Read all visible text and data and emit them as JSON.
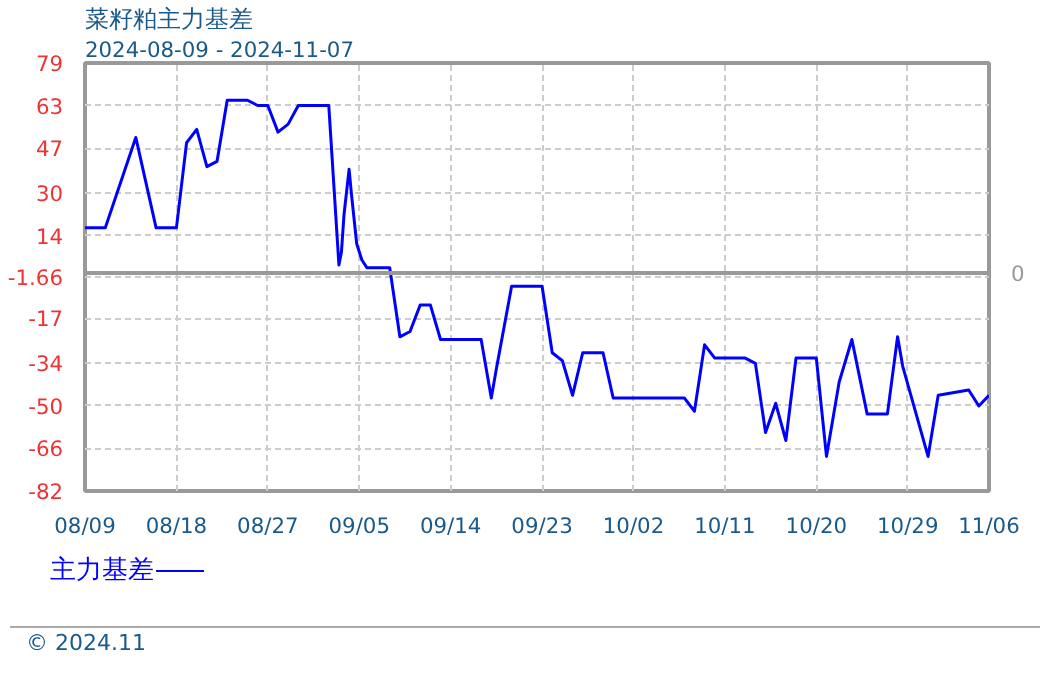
{
  "chart_data": {
    "type": "line",
    "title": "菜籽粕主力基差",
    "subtitle": "2024-08-09 - 2024-11-07",
    "x": [
      "2024-08-09",
      "2024-08-11",
      "2024-08-14",
      "2024-08-16",
      "2024-08-18",
      "2024-08-19",
      "2024-08-20",
      "2024-08-21",
      "2024-08-22",
      "2024-08-23",
      "2024-08-25",
      "2024-08-26",
      "2024-08-27",
      "2024-08-28",
      "2024-08-29",
      "2024-08-30",
      "2024-09-02",
      "2024-09-02T12:00",
      "2024-09-03",
      "2024-09-03T06:00",
      "2024-09-03T12:00",
      "2024-09-04",
      "2024-09-04T06:00",
      "2024-09-04T18:00",
      "2024-09-05T06:00",
      "2024-09-05T18:00",
      "2024-09-08",
      "2024-09-09",
      "2024-09-10",
      "2024-09-11",
      "2024-09-12",
      "2024-09-13",
      "2024-09-17",
      "2024-09-18",
      "2024-09-18T12:00",
      "2024-09-20",
      "2024-09-23",
      "2024-09-24",
      "2024-09-25",
      "2024-09-26",
      "2024-09-27",
      "2024-09-29",
      "2024-09-30",
      "2024-10-07",
      "2024-10-08",
      "2024-10-09",
      "2024-10-10",
      "2024-10-13",
      "2024-10-14",
      "2024-10-15",
      "2024-10-16",
      "2024-10-17",
      "2024-10-18",
      "2024-10-20",
      "2024-10-21",
      "2024-10-22T06:00",
      "2024-10-23T12:00",
      "2024-10-25",
      "2024-10-27",
      "2024-10-28",
      "2024-10-28T12:00",
      "2024-10-31",
      "2024-11-01",
      "2024-11-04",
      "2024-11-05",
      "2024-11-06"
    ],
    "series": [
      {
        "name": "主力基差",
        "color": "#0000ff",
        "values": [
          17,
          17,
          51,
          17,
          17,
          49,
          54,
          40,
          42,
          65,
          65,
          63,
          63,
          53,
          56,
          63,
          63,
          33,
          3,
          8,
          22,
          39,
          29,
          11,
          5,
          2,
          2,
          -24,
          -22,
          -12,
          -12,
          -25,
          -25,
          -47,
          -36,
          -5,
          -5,
          -30,
          -33,
          -46,
          -30,
          -30,
          -47,
          -47,
          -52,
          -27,
          -32,
          -32,
          -34,
          -60,
          -49,
          -63,
          -32,
          -32,
          -69,
          -41,
          -25,
          -53,
          -53,
          -24,
          -35,
          -69,
          -46,
          -44,
          -50,
          -46
        ]
      }
    ],
    "xlim": [
      "2024-08-09",
      "2024-11-06"
    ],
    "xticks": [
      {
        "value": "2024-08-09",
        "label": "08/09"
      },
      {
        "value": "2024-08-18",
        "label": "08/18"
      },
      {
        "value": "2024-08-27",
        "label": "08/27"
      },
      {
        "value": "2024-09-05",
        "label": "09/05"
      },
      {
        "value": "2024-09-14",
        "label": "09/14"
      },
      {
        "value": "2024-09-23",
        "label": "09/23"
      },
      {
        "value": "2024-10-02",
        "label": "10/02"
      },
      {
        "value": "2024-10-11",
        "label": "10/11"
      },
      {
        "value": "2024-10-20",
        "label": "10/20"
      },
      {
        "value": "2024-10-29",
        "label": "10/29"
      },
      {
        "value": "2024-11-06",
        "label": "11/06"
      }
    ],
    "ylim": [
      -82,
      79
    ],
    "yticks": [
      79,
      63,
      47,
      30,
      14,
      -1.66,
      -17,
      -34,
      -50,
      -66,
      -82
    ],
    "ref_lines": [
      {
        "axis": "y",
        "value": 0,
        "label": "0",
        "color": "#999999"
      }
    ],
    "grid": true,
    "legend": "bottom left",
    "line_style": "solid",
    "marker": "none",
    "annotations": [
      "© 2024.11"
    ]
  }
}
